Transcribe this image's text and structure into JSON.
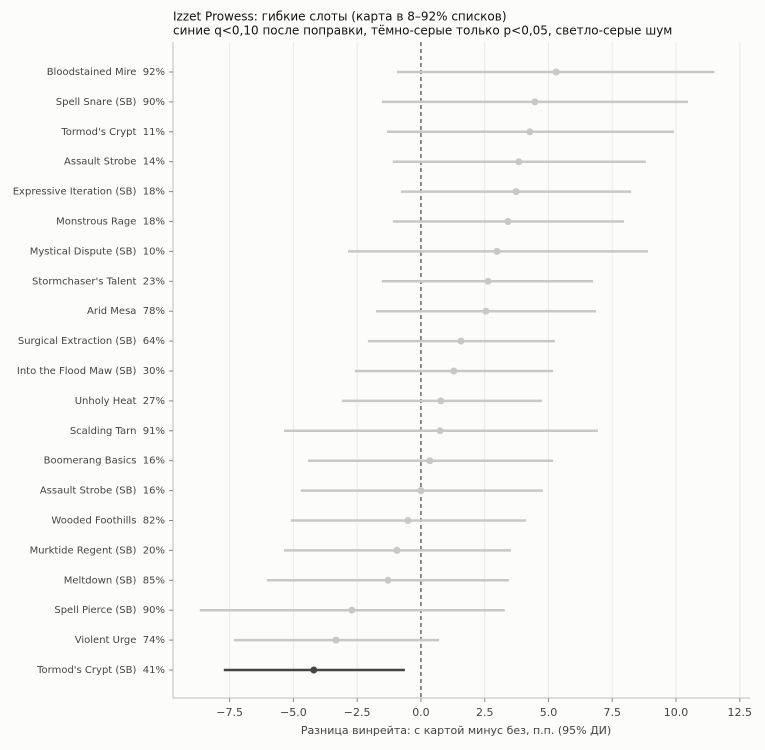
{
  "chart_data": {
    "type": "forest",
    "title": "Izzet Prowess: гибкие слоты (карта в 8–92% списков)",
    "subtitle": "синие q<0,10 после поправки, тёмно-серые только p<0,05, светло-серые шум",
    "x_label": "Разница винрейта: с картой минус без, п.п. (95% ДИ)",
    "categories": [
      "Bloodstained Mire  92%",
      "Spell Snare (SB)  90%",
      "Tormod's Crypt  11%",
      "Assault Strobe  14%",
      "Expressive Iteration (SB)  18%",
      "Monstrous Rage  18%",
      "Mystical Dispute (SB)  10%",
      "Stormchaser's Talent  23%",
      "Arid Mesa  78%",
      "Surgical Extraction (SB)  64%",
      "Into the Flood Maw (SB)  30%",
      "Unholy Heat  27%",
      "Scalding Tarn  91%",
      "Boomerang Basics  16%",
      "Assault Strobe (SB)  16%",
      "Wooded Foothills  82%",
      "Murktide Regent (SB)  20%",
      "Meltdown (SB)  85%",
      "Spell Pierce (SB)  90%",
      "Violent Urge  74%",
      "Tormod's Crypt (SB)  41%"
    ],
    "values": [
      5.3,
      4.47,
      4.27,
      3.84,
      3.73,
      3.41,
      2.98,
      2.63,
      2.55,
      1.57,
      1.29,
      0.78,
      0.75,
      0.35,
      0.0,
      -0.51,
      -0.94,
      -1.29,
      -2.71,
      -3.33,
      -4.2
    ],
    "ci_low": [
      -0.94,
      -1.53,
      -1.33,
      -1.1,
      -0.78,
      -1.1,
      -2.86,
      -1.53,
      -1.76,
      -2.08,
      -2.59,
      -3.1,
      -5.37,
      -4.43,
      -4.71,
      -5.1,
      -5.37,
      -6.04,
      -8.67,
      -7.33,
      -7.73
    ],
    "ci_high": [
      11.5,
      10.47,
      9.92,
      8.82,
      8.24,
      7.96,
      8.9,
      6.75,
      6.86,
      5.25,
      5.18,
      4.75,
      6.94,
      5.18,
      4.78,
      4.12,
      3.53,
      3.45,
      3.29,
      0.71,
      -0.63
    ],
    "colors": [
      "#c8c8c8",
      "#c8c8c8",
      "#c8c8c8",
      "#c8c8c8",
      "#c8c8c8",
      "#c8c8c8",
      "#c8c8c8",
      "#c8c8c8",
      "#c8c8c8",
      "#c8c8c8",
      "#c8c8c8",
      "#c8c8c8",
      "#c8c8c8",
      "#c8c8c8",
      "#c8c8c8",
      "#c8c8c8",
      "#c8c8c8",
      "#c8c8c8",
      "#c8c8c8",
      "#c8c8c8",
      "#444444"
    ],
    "xlim": [
      -9.72,
      12.9
    ],
    "xticks": [
      {
        "value": -7.5,
        "label": "−7.5"
      },
      {
        "value": -5,
        "label": "−5.0"
      },
      {
        "value": -2.5,
        "label": "−2.5"
      },
      {
        "value": 0,
        "label": "0.0"
      },
      2.5,
      {
        "value": 5,
        "label": "5.0"
      },
      {
        "value": 7.5,
        "label": "7.5"
      },
      {
        "value": 10,
        "label": "10.0"
      },
      12.5
    ],
    "reference_x": 0,
    "grid": true
  }
}
